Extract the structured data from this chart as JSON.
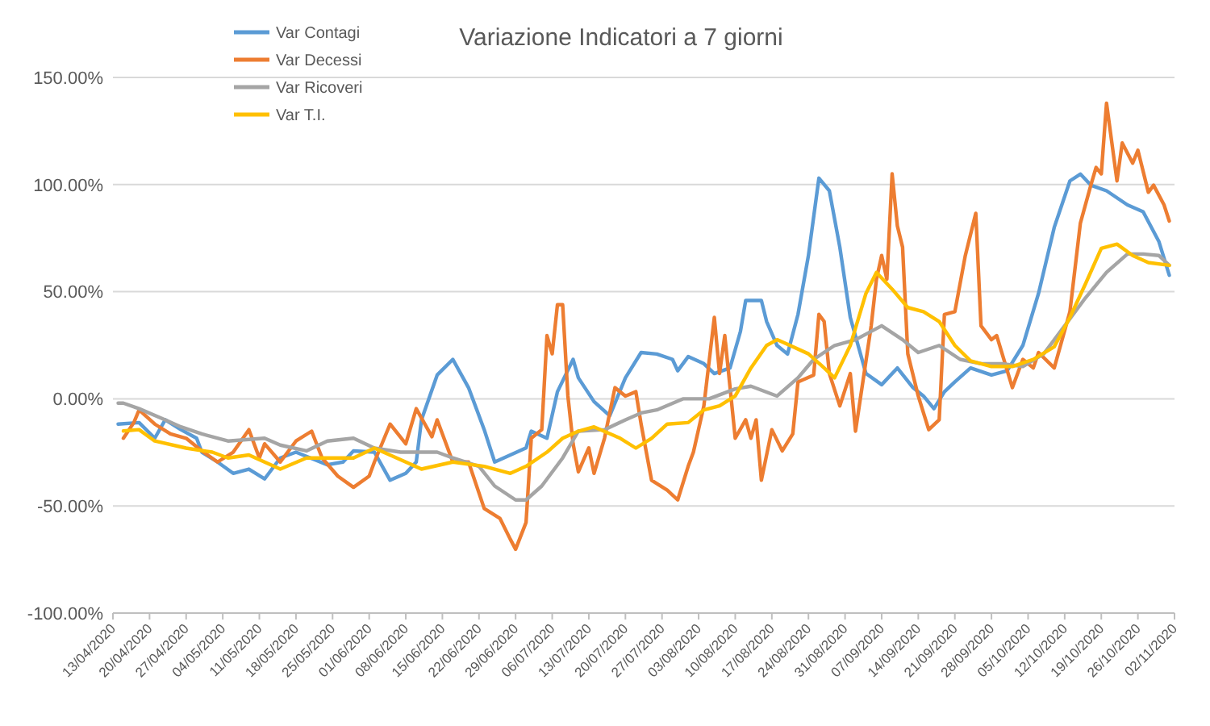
{
  "chart_data": {
    "type": "line",
    "title": "Variazione Indicatori a 7 giorni",
    "legend": "top left",
    "grid": "y",
    "line_style": "solid",
    "marker": "none",
    "xlim": [
      "2020-04-13",
      "2020-11-02"
    ],
    "xticks": [
      {
        "value": "2020-04-13",
        "label": "13/04/2020"
      },
      {
        "value": "2020-04-20",
        "label": "20/04/2020"
      },
      {
        "value": "2020-04-27",
        "label": "27/04/2020"
      },
      {
        "value": "2020-05-04",
        "label": "04/05/2020"
      },
      {
        "value": "2020-05-11",
        "label": "11/05/2020"
      },
      {
        "value": "2020-05-18",
        "label": "18/05/2020"
      },
      {
        "value": "2020-05-25",
        "label": "25/05/2020"
      },
      {
        "value": "2020-06-01",
        "label": "01/06/2020"
      },
      {
        "value": "2020-06-08",
        "label": "08/06/2020"
      },
      {
        "value": "2020-06-15",
        "label": "15/06/2020"
      },
      {
        "value": "2020-06-22",
        "label": "22/06/2020"
      },
      {
        "value": "2020-06-29",
        "label": "29/06/2020"
      },
      {
        "value": "2020-07-06",
        "label": "06/07/2020"
      },
      {
        "value": "2020-07-13",
        "label": "13/07/2020"
      },
      {
        "value": "2020-07-20",
        "label": "20/07/2020"
      },
      {
        "value": "2020-07-27",
        "label": "27/07/2020"
      },
      {
        "value": "2020-08-03",
        "label": "03/08/2020"
      },
      {
        "value": "2020-08-10",
        "label": "10/08/2020"
      },
      {
        "value": "2020-08-17",
        "label": "17/08/2020"
      },
      {
        "value": "2020-08-24",
        "label": "24/08/2020"
      },
      {
        "value": "2020-08-31",
        "label": "31/08/2020"
      },
      {
        "value": "2020-09-07",
        "label": "07/09/2020"
      },
      {
        "value": "2020-09-14",
        "label": "14/09/2020"
      },
      {
        "value": "2020-09-21",
        "label": "21/09/2020"
      },
      {
        "value": "2020-09-28",
        "label": "28/09/2020"
      },
      {
        "value": "2020-10-05",
        "label": "05/10/2020"
      },
      {
        "value": "2020-10-12",
        "label": "12/10/2020"
      },
      {
        "value": "2020-10-19",
        "label": "19/10/2020"
      },
      {
        "value": "2020-10-26",
        "label": "26/10/2020"
      },
      {
        "value": "2020-11-02",
        "label": "02/11/2020"
      }
    ],
    "ylim": [
      -100,
      150
    ],
    "yticks": [
      {
        "value": -100,
        "label": "-100.00%"
      },
      {
        "value": -50,
        "label": "-50.00%"
      },
      {
        "value": 0,
        "label": "0.00%"
      },
      {
        "value": 50,
        "label": "50.00%"
      },
      {
        "value": 100,
        "label": "100.00%"
      },
      {
        "value": 150,
        "label": "150.00%"
      }
    ],
    "series": [
      {
        "name": "Var Contagi",
        "color": "#5b9bd5",
        "x": [
          "2020-04-14",
          "2020-04-18",
          "2020-04-21",
          "2020-04-23",
          "2020-04-26",
          "2020-04-29",
          "2020-04-30",
          "2020-05-03",
          "2020-05-06",
          "2020-05-09",
          "2020-05-12",
          "2020-05-15",
          "2020-05-18",
          "2020-05-24",
          "2020-05-27",
          "2020-05-29",
          "2020-06-02",
          "2020-06-05",
          "2020-06-08",
          "2020-06-10",
          "2020-06-11",
          "2020-06-14",
          "2020-06-17",
          "2020-06-20",
          "2020-06-23",
          "2020-06-25",
          "2020-06-28",
          "2020-07-01",
          "2020-07-02",
          "2020-07-05",
          "2020-07-07",
          "2020-07-10",
          "2020-07-11",
          "2020-07-14",
          "2020-07-17",
          "2020-07-20",
          "2020-07-23",
          "2020-07-26",
          "2020-07-29",
          "2020-07-30",
          "2020-08-01",
          "2020-08-04",
          "2020-08-06",
          "2020-08-09",
          "2020-08-11",
          "2020-08-12",
          "2020-08-15",
          "2020-08-16",
          "2020-08-18",
          "2020-08-20",
          "2020-08-22",
          "2020-08-24",
          "2020-08-26",
          "2020-08-28",
          "2020-08-30",
          "2020-09-01",
          "2020-09-04",
          "2020-09-07",
          "2020-09-10",
          "2020-09-13",
          "2020-09-15",
          "2020-09-17",
          "2020-09-19",
          "2020-09-21",
          "2020-09-24",
          "2020-09-28",
          "2020-10-01",
          "2020-10-04",
          "2020-10-07",
          "2020-10-10",
          "2020-10-13",
          "2020-10-15",
          "2020-10-17",
          "2020-10-20",
          "2020-10-24",
          "2020-10-27",
          "2020-10-30",
          "2020-11-01"
        ],
        "values": [
          -11.8,
          -11.1,
          -18.4,
          -9.8,
          -14.4,
          -18.4,
          -24.9,
          -29.5,
          -34.8,
          -32.8,
          -37.4,
          -27.6,
          -24.9,
          -30.8,
          -29.5,
          -24.3,
          -24.9,
          -38.0,
          -34.8,
          -29.5,
          -9.8,
          11.1,
          18.4,
          5.2,
          -14.4,
          -29.5,
          -26.2,
          -22.9,
          -15.1,
          -18.4,
          3.3,
          18.4,
          9.8,
          -1.3,
          -7.9,
          9.8,
          21.6,
          20.9,
          18.4,
          13.1,
          19.7,
          16.4,
          11.8,
          14.4,
          31.5,
          45.9,
          45.9,
          36.1,
          24.9,
          20.9,
          39.4,
          66.9,
          103,
          97.1,
          70.8,
          38.0,
          11.8,
          6.6,
          14.4,
          5.2,
          1.3,
          -4.6,
          3.3,
          7.9,
          14.4,
          11.1,
          13.1,
          24.9,
          49.2,
          80.0,
          101.7,
          104.9,
          99.7,
          97.1,
          90.5,
          87.3,
          73.5,
          57.7
        ]
      },
      {
        "name": "Var Decessi",
        "color": "#ed7d31",
        "x": [
          "2020-04-15",
          "2020-04-17",
          "2020-04-18",
          "2020-04-21",
          "2020-04-24",
          "2020-04-27",
          "2020-04-30",
          "2020-05-03",
          "2020-05-06",
          "2020-05-09",
          "2020-05-11",
          "2020-05-12",
          "2020-05-15",
          "2020-05-18",
          "2020-05-21",
          "2020-05-23",
          "2020-05-26",
          "2020-05-29",
          "2020-06-01",
          "2020-06-02",
          "2020-06-05",
          "2020-06-08",
          "2020-06-10",
          "2020-06-13",
          "2020-06-14",
          "2020-06-17",
          "2020-06-20",
          "2020-06-23",
          "2020-06-26",
          "2020-06-28",
          "2020-06-29",
          "2020-07-01",
          "2020-07-02",
          "2020-07-04",
          "2020-07-05",
          "2020-07-06",
          "2020-07-07",
          "2020-07-08",
          "2020-07-09",
          "2020-07-10",
          "2020-07-11",
          "2020-07-13",
          "2020-07-14",
          "2020-07-16",
          "2020-07-18",
          "2020-07-20",
          "2020-07-22",
          "2020-07-23",
          "2020-07-25",
          "2020-07-28",
          "2020-07-30",
          "2020-08-01",
          "2020-08-02",
          "2020-08-04",
          "2020-08-06",
          "2020-08-07",
          "2020-08-08",
          "2020-08-10",
          "2020-08-12",
          "2020-08-13",
          "2020-08-14",
          "2020-08-15",
          "2020-08-17",
          "2020-08-19",
          "2020-08-21",
          "2020-08-22",
          "2020-08-25",
          "2020-08-26",
          "2020-08-27",
          "2020-08-28",
          "2020-08-30",
          "2020-09-01",
          "2020-09-02",
          "2020-09-03",
          "2020-09-05",
          "2020-09-06",
          "2020-09-07",
          "2020-09-08",
          "2020-09-09",
          "2020-09-10",
          "2020-09-11",
          "2020-09-12",
          "2020-09-14",
          "2020-09-16",
          "2020-09-18",
          "2020-09-19",
          "2020-09-21",
          "2020-09-23",
          "2020-09-25",
          "2020-09-26",
          "2020-09-28",
          "2020-09-29",
          "2020-10-02",
          "2020-10-04",
          "2020-10-06",
          "2020-10-07",
          "2020-10-10",
          "2020-10-13",
          "2020-10-15",
          "2020-10-17",
          "2020-10-18",
          "2020-10-19",
          "2020-10-20",
          "2020-10-22",
          "2020-10-23",
          "2020-10-25",
          "2020-10-26",
          "2020-10-28",
          "2020-10-29",
          "2020-10-31",
          "2020-11-01"
        ],
        "values": [
          -18.4,
          -11.1,
          -5.2,
          -11.8,
          -16.4,
          -18.4,
          -24.3,
          -29.5,
          -24.9,
          -14.4,
          -27.6,
          -21.0,
          -29.5,
          -19.7,
          -15.1,
          -27.6,
          -36.1,
          -41.3,
          -36.1,
          -29.5,
          -11.8,
          -21.0,
          -4.6,
          -17.7,
          -9.8,
          -29.5,
          -29.5,
          -51.2,
          -55.8,
          -65.6,
          -70.2,
          -57.7,
          -18.4,
          -14.4,
          29.5,
          21.0,
          43.9,
          43.9,
          1.3,
          -21.0,
          -34.1,
          -22.9,
          -34.8,
          -18.4,
          5.2,
          1.3,
          3.3,
          -11.8,
          -38.0,
          -42.6,
          -47.2,
          -31.5,
          -24.9,
          -3.3,
          38.0,
          11.8,
          29.5,
          -18.4,
          -9.8,
          -18.4,
          -9.8,
          -38.0,
          -14.4,
          -24.3,
          -16.4,
          7.9,
          11.1,
          39.4,
          36.1,
          11.8,
          -3.3,
          11.8,
          -15.1,
          1.3,
          34.1,
          55.8,
          66.9,
          55.8,
          105,
          80.7,
          70.8,
          21.0,
          1.3,
          -14.4,
          -9.8,
          39.4,
          40.7,
          66.9,
          86.6,
          34.1,
          27.6,
          29.5,
          5.2,
          18.4,
          14.4,
          21.6,
          14.4,
          40.7,
          82.0,
          99.7,
          108,
          105,
          138,
          101.7,
          119.4,
          110,
          116,
          96.4,
          99.7,
          90.5,
          83.0
        ]
      },
      {
        "name": "Var Ricoveri",
        "color": "#a5a5a5",
        "x": [
          "2020-04-14",
          "2020-04-15",
          "2020-04-18",
          "2020-04-23",
          "2020-04-26",
          "2020-04-30",
          "2020-05-05",
          "2020-05-12",
          "2020-05-15",
          "2020-05-20",
          "2020-05-24",
          "2020-05-29",
          "2020-06-02",
          "2020-06-07",
          "2020-06-14",
          "2020-06-17",
          "2020-06-22",
          "2020-06-25",
          "2020-06-29",
          "2020-07-01",
          "2020-07-04",
          "2020-07-08",
          "2020-07-11",
          "2020-07-16",
          "2020-07-20",
          "2020-07-23",
          "2020-07-26",
          "2020-07-31",
          "2020-08-05",
          "2020-08-10",
          "2020-08-13",
          "2020-08-18",
          "2020-08-22",
          "2020-08-25",
          "2020-08-29",
          "2020-09-02",
          "2020-09-07",
          "2020-09-11",
          "2020-09-14",
          "2020-09-18",
          "2020-09-22",
          "2020-09-26",
          "2020-09-30",
          "2020-10-04",
          "2020-10-08",
          "2020-10-12",
          "2020-10-16",
          "2020-10-20",
          "2020-10-24",
          "2020-10-27",
          "2020-10-30",
          "2020-11-01"
        ],
        "values": [
          -2,
          -2,
          -4.6,
          -9.8,
          -13.1,
          -16.4,
          -19.7,
          -18.4,
          -21.6,
          -24.3,
          -19.7,
          -18.4,
          -23,
          -24.9,
          -24.9,
          -27.6,
          -31.5,
          -40.7,
          -47.2,
          -47.2,
          -40.7,
          -27.6,
          -15.1,
          -14.4,
          -9.8,
          -6.6,
          -5.2,
          0,
          0,
          4.6,
          5.9,
          1.3,
          9.8,
          18.4,
          24.9,
          27.6,
          34.1,
          27.6,
          21.6,
          24.9,
          18.4,
          16.4,
          16.4,
          15.1,
          21,
          34.1,
          47.2,
          59,
          67.6,
          67.6,
          66.9,
          62.3
        ]
      },
      {
        "name": "Var T.I.",
        "color": "#ffc000",
        "x": [
          "2020-04-15",
          "2020-04-18",
          "2020-04-21",
          "2020-04-27",
          "2020-05-02",
          "2020-05-05",
          "2020-05-09",
          "2020-05-12",
          "2020-05-15",
          "2020-05-20",
          "2020-05-24",
          "2020-05-29",
          "2020-06-02",
          "2020-06-08",
          "2020-06-11",
          "2020-06-17",
          "2020-06-23",
          "2020-06-28",
          "2020-07-01",
          "2020-07-05",
          "2020-07-08",
          "2020-07-11",
          "2020-07-14",
          "2020-07-19",
          "2020-07-22",
          "2020-07-25",
          "2020-07-28",
          "2020-08-01",
          "2020-08-04",
          "2020-08-07",
          "2020-08-10",
          "2020-08-13",
          "2020-08-16",
          "2020-08-18",
          "2020-08-21",
          "2020-08-24",
          "2020-08-27",
          "2020-08-29",
          "2020-09-01",
          "2020-09-04",
          "2020-09-06",
          "2020-09-09",
          "2020-09-12",
          "2020-09-15",
          "2020-09-18",
          "2020-09-21",
          "2020-09-24",
          "2020-09-28",
          "2020-10-02",
          "2020-10-06",
          "2020-10-10",
          "2020-10-13",
          "2020-10-16",
          "2020-10-19",
          "2020-10-22",
          "2020-10-25",
          "2020-10-28",
          "2020-11-01"
        ],
        "values": [
          -15,
          -14.4,
          -19.7,
          -23,
          -24.9,
          -27.6,
          -26.2,
          -29.5,
          -32.8,
          -27.6,
          -27.6,
          -27.6,
          -23,
          -29.5,
          -32.8,
          -29.5,
          -31.5,
          -34.8,
          -31.5,
          -24.9,
          -18.4,
          -15.1,
          -13.1,
          -18.4,
          -23,
          -18.4,
          -11.8,
          -11.1,
          -5.2,
          -3.3,
          1.3,
          14.4,
          24.9,
          27.6,
          24.3,
          21,
          14.4,
          9.8,
          24.9,
          49.2,
          59,
          51.2,
          42.6,
          40.7,
          36.1,
          24.9,
          17.7,
          15.1,
          15.1,
          18.4,
          24.3,
          38,
          53.8,
          70.2,
          72.2,
          66.9,
          63.6,
          62.3
        ]
      }
    ]
  }
}
